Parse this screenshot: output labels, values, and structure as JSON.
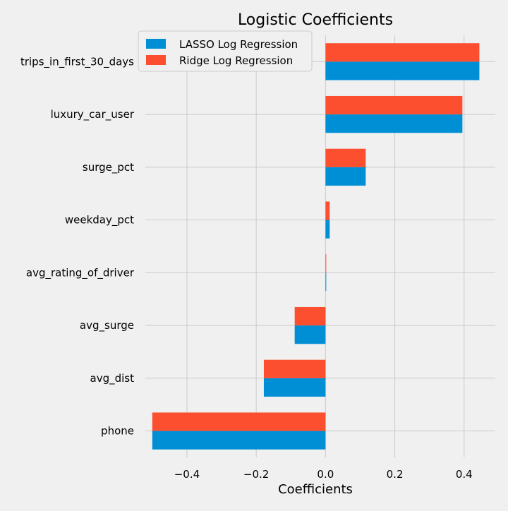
{
  "chart_data": {
    "type": "bar",
    "orientation": "horizontal",
    "title": "Logistic Coefficients",
    "xlabel": "Coefficients",
    "ylabel": "",
    "categories": [
      "trips_in_first_30_days",
      "luxury_car_user",
      "surge_pct",
      "weekday_pct",
      "avg_rating_of_driver",
      "avg_surge",
      "avg_dist",
      "phone"
    ],
    "series": [
      {
        "name": "LASSO Log Regression",
        "color": "#008fd5",
        "values": [
          0.444,
          0.395,
          0.116,
          0.012,
          0.002,
          -0.089,
          -0.178,
          -0.5
        ]
      },
      {
        "name": "Ridge Log Regression",
        "color": "#fc4f30",
        "values": [
          0.444,
          0.395,
          0.116,
          0.012,
          0.002,
          -0.089,
          -0.178,
          -0.5
        ]
      }
    ],
    "xlim": [
      -0.52,
      0.49
    ],
    "xticks": [
      -0.4,
      -0.2,
      0.0,
      0.2,
      0.4
    ],
    "xtick_labels": [
      "−0.4",
      "−0.2",
      "0.0",
      "0.2",
      "0.4"
    ],
    "grid": true,
    "legend_position": "top-left"
  }
}
